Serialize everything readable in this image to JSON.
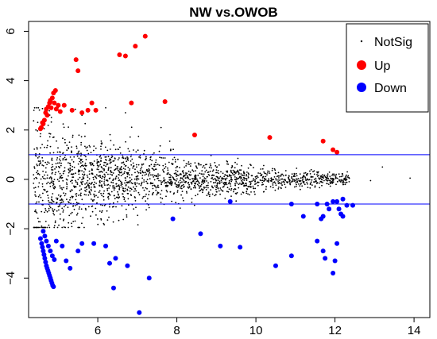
{
  "chart_data": {
    "type": "scatter",
    "title": "NW vs.OWOB",
    "xlabel": "",
    "ylabel": "",
    "xlim": [
      4.25,
      14.4
    ],
    "ylim": [
      -5.6,
      6.4
    ],
    "x_ticks": [
      6,
      8,
      10,
      12,
      14
    ],
    "y_ticks": [
      -4,
      -2,
      0,
      2,
      4,
      6
    ],
    "hlines": [
      1,
      -1
    ],
    "grid": false,
    "legend_position": "top-right",
    "colors": {
      "NotSig": "#000000",
      "Up": "#ff0000",
      "Down": "#0000ff",
      "threshold": "#0000ff"
    },
    "series": [
      {
        "name": "NotSig",
        "marker": "dot",
        "density": [
          [
            4.5,
            1.6
          ],
          [
            4.75,
            1.35
          ],
          [
            5.0,
            1.1
          ],
          [
            5.25,
            1.0
          ],
          [
            5.5,
            0.9
          ],
          [
            5.75,
            0.85
          ],
          [
            6.0,
            0.8
          ],
          [
            6.25,
            0.75
          ],
          [
            6.5,
            0.7
          ],
          [
            6.75,
            0.65
          ],
          [
            7.0,
            0.6
          ],
          [
            7.25,
            0.55
          ],
          [
            7.5,
            0.5
          ],
          [
            7.75,
            0.45
          ],
          [
            8.0,
            0.42
          ],
          [
            8.25,
            0.4
          ],
          [
            8.5,
            0.38
          ],
          [
            8.75,
            0.36
          ],
          [
            9.0,
            0.34
          ],
          [
            9.25,
            0.32
          ],
          [
            9.5,
            0.3
          ],
          [
            9.75,
            0.28
          ],
          [
            10.0,
            0.26
          ],
          [
            10.25,
            0.24
          ],
          [
            10.5,
            0.22
          ],
          [
            10.75,
            0.2
          ],
          [
            11.0,
            0.19
          ],
          [
            11.25,
            0.18
          ],
          [
            11.5,
            0.17
          ],
          [
            11.75,
            0.16
          ],
          [
            12.0,
            0.15
          ],
          [
            12.25,
            0.14
          ]
        ],
        "points": [
          [
            13.2,
            0.5
          ],
          [
            13.9,
            0.05
          ],
          [
            12.9,
            -0.05
          ],
          [
            6.7,
            2.7
          ],
          [
            6.2,
            2.9
          ],
          [
            7.6,
            2.1
          ],
          [
            5.6,
            2.6
          ]
        ]
      },
      {
        "name": "Up",
        "points": [
          [
            4.55,
            2.05
          ],
          [
            4.57,
            2.1
          ],
          [
            4.6,
            2.3
          ],
          [
            4.62,
            2.25
          ],
          [
            4.65,
            2.4
          ],
          [
            4.68,
            2.7
          ],
          [
            4.7,
            2.85
          ],
          [
            4.72,
            2.6
          ],
          [
            4.75,
            2.95
          ],
          [
            4.78,
            3.1
          ],
          [
            4.8,
            3.2
          ],
          [
            4.82,
            2.9
          ],
          [
            4.85,
            3.3
          ],
          [
            4.88,
            3.5
          ],
          [
            4.9,
            3.1
          ],
          [
            4.93,
            3.6
          ],
          [
            4.95,
            2.85
          ],
          [
            5.0,
            3.0
          ],
          [
            5.05,
            2.75
          ],
          [
            5.15,
            3.0
          ],
          [
            5.35,
            2.8
          ],
          [
            5.45,
            4.85
          ],
          [
            5.5,
            4.4
          ],
          [
            5.6,
            2.7
          ],
          [
            5.75,
            2.8
          ],
          [
            5.85,
            3.1
          ],
          [
            5.95,
            2.8
          ],
          [
            6.55,
            5.05
          ],
          [
            6.7,
            5.0
          ],
          [
            6.95,
            5.4
          ],
          [
            7.2,
            5.8
          ],
          [
            6.85,
            3.1
          ],
          [
            7.7,
            3.15
          ],
          [
            8.45,
            1.8
          ],
          [
            10.35,
            1.7
          ],
          [
            11.7,
            1.55
          ],
          [
            11.95,
            1.2
          ],
          [
            12.05,
            1.1
          ]
        ]
      },
      {
        "name": "Down",
        "points": [
          [
            4.55,
            -2.4
          ],
          [
            4.58,
            -2.6
          ],
          [
            4.6,
            -2.75
          ],
          [
            4.62,
            -2.9
          ],
          [
            4.64,
            -3.05
          ],
          [
            4.66,
            -3.2
          ],
          [
            4.68,
            -3.35
          ],
          [
            4.7,
            -3.5
          ],
          [
            4.72,
            -3.6
          ],
          [
            4.74,
            -3.7
          ],
          [
            4.76,
            -3.8
          ],
          [
            4.78,
            -3.9
          ],
          [
            4.8,
            -4.0
          ],
          [
            4.82,
            -4.1
          ],
          [
            4.84,
            -4.2
          ],
          [
            4.86,
            -4.3
          ],
          [
            4.88,
            -4.35
          ],
          [
            4.7,
            -2.5
          ],
          [
            4.75,
            -2.7
          ],
          [
            4.8,
            -2.9
          ],
          [
            4.85,
            -3.1
          ],
          [
            4.9,
            -3.25
          ],
          [
            4.62,
            -2.1
          ],
          [
            4.66,
            -2.3
          ],
          [
            4.95,
            -2.5
          ],
          [
            5.1,
            -2.7
          ],
          [
            5.2,
            -3.3
          ],
          [
            5.3,
            -3.6
          ],
          [
            5.5,
            -2.9
          ],
          [
            5.6,
            -2.6
          ],
          [
            5.9,
            -2.6
          ],
          [
            6.2,
            -2.7
          ],
          [
            6.3,
            -3.4
          ],
          [
            6.45,
            -3.2
          ],
          [
            6.75,
            -3.5
          ],
          [
            6.4,
            -4.4
          ],
          [
            7.05,
            -5.4
          ],
          [
            7.3,
            -4.0
          ],
          [
            7.9,
            -1.6
          ],
          [
            8.6,
            -2.2
          ],
          [
            9.1,
            -2.7
          ],
          [
            9.6,
            -2.75
          ],
          [
            10.5,
            -3.5
          ],
          [
            10.9,
            -3.1
          ],
          [
            9.35,
            -0.9
          ],
          [
            10.9,
            -1.0
          ],
          [
            11.2,
            -1.5
          ],
          [
            11.55,
            -2.5
          ],
          [
            11.7,
            -2.9
          ],
          [
            11.75,
            -3.2
          ],
          [
            11.85,
            -1.2
          ],
          [
            11.95,
            -3.8
          ],
          [
            12.0,
            -3.3
          ],
          [
            12.05,
            -2.6
          ],
          [
            12.15,
            -1.4
          ],
          [
            11.55,
            -1.0
          ],
          [
            11.65,
            -1.6
          ],
          [
            11.7,
            -1.5
          ],
          [
            11.8,
            -1.0
          ],
          [
            11.95,
            -0.9
          ],
          [
            12.1,
            -1.2
          ],
          [
            12.2,
            -1.5
          ],
          [
            12.05,
            -0.9
          ],
          [
            12.2,
            -0.8
          ],
          [
            12.3,
            -1.05
          ],
          [
            12.45,
            -1.05
          ]
        ]
      }
    ]
  }
}
